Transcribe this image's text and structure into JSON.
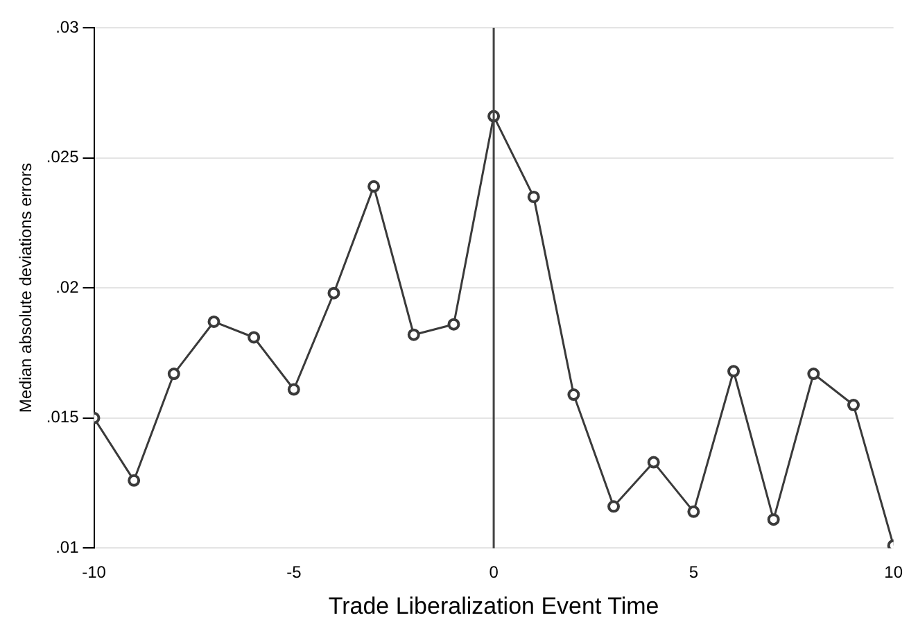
{
  "chart_data": {
    "type": "line",
    "xlabel": "Trade Liberalization Event Time",
    "ylabel": "Median absolute deviations errors",
    "x": [
      -10,
      -9,
      -8,
      -7,
      -6,
      -5,
      -4,
      -3,
      -2,
      -1,
      0,
      1,
      2,
      3,
      4,
      5,
      6,
      7,
      8,
      9,
      10
    ],
    "series": [
      {
        "color": "#3a3a3a",
        "values": [
          0.015,
          0.0126,
          0.0167,
          0.0187,
          0.0181,
          0.0161,
          0.0198,
          0.0239,
          0.0182,
          0.0186,
          0.0266,
          0.0235,
          0.0159,
          0.0116,
          0.0133,
          0.0114,
          0.0168,
          0.0111,
          0.0167,
          0.0155,
          0.0101
        ]
      }
    ],
    "xlim": [
      -10,
      10
    ],
    "xticks": [
      -10,
      -5,
      0,
      5,
      10
    ],
    "ylim": [
      0.01,
      0.03
    ],
    "yticks": [
      {
        "value": 0.01,
        "label": ".01"
      },
      {
        "value": 0.015,
        "label": ".015"
      },
      {
        "value": 0.02,
        "label": ".02"
      },
      {
        "value": 0.025,
        "label": ".025"
      },
      {
        "value": 0.03,
        "label": ".03"
      }
    ],
    "ref_lines": [
      {
        "axis": "x",
        "value": 0,
        "color": "#444444"
      }
    ],
    "grid": "y",
    "marker": "circle",
    "line_style": "solid",
    "legend": false
  }
}
